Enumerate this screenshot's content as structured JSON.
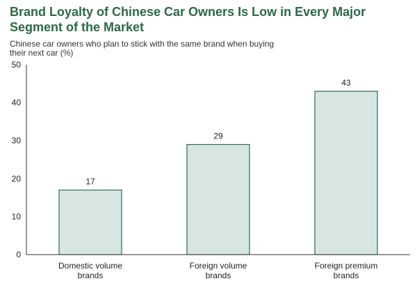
{
  "chart_data": {
    "type": "bar",
    "title": "Brand Loyalty of Chinese Car Owners Is Low in Every Major Segment of the Market",
    "subtitle": "Chinese car owners who plan to stick with the same brand when buying their next car (%)",
    "categories": [
      "Domestic volume brands",
      "Foreign volume brands",
      "Foreign premium brands"
    ],
    "category_lines": [
      [
        "Domestic volume",
        "brands"
      ],
      [
        "Foreign volume",
        "brands"
      ],
      [
        "Foreign premium",
        "brands"
      ]
    ],
    "values": [
      17,
      29,
      43
    ],
    "data_labels": [
      "17",
      "29",
      "43"
    ],
    "ylim": [
      0,
      50
    ],
    "yticks": [
      0,
      10,
      20,
      30,
      40,
      50
    ],
    "ytick_labels": [
      "0",
      "10",
      "20",
      "30",
      "40",
      "50"
    ],
    "grid": false,
    "bar_fill": "#d7e6e2",
    "bar_stroke": "#2f6a55",
    "title_color": "#2b6a45"
  }
}
